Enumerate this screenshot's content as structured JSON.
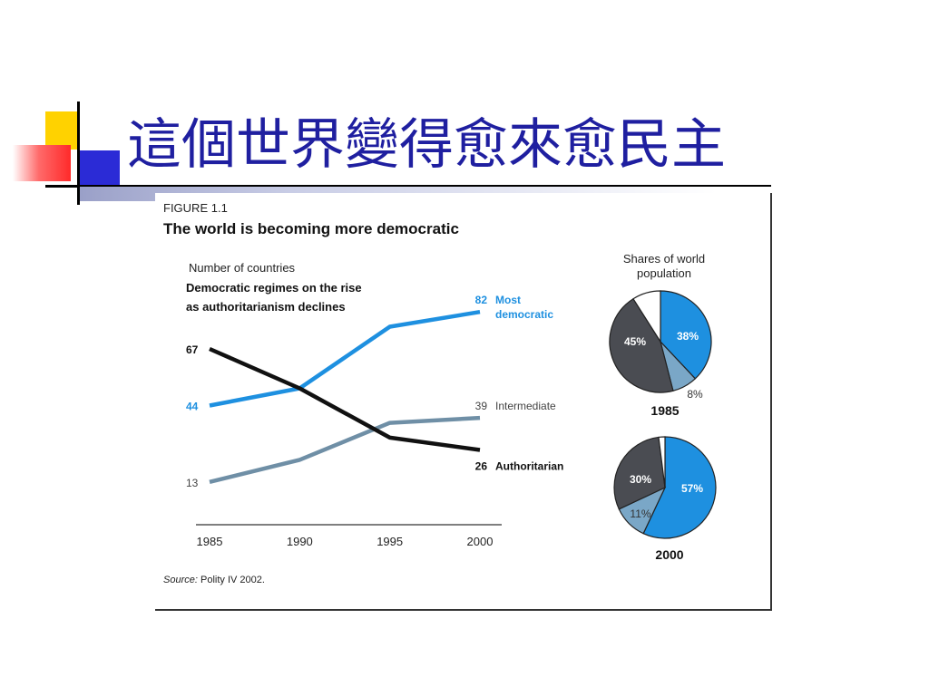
{
  "slide": {
    "title": "這個世界變得愈來愈民主"
  },
  "figure": {
    "label": "FIGURE 1.1",
    "heading": "The world is becoming more democratic",
    "source_label": "Source:",
    "source_text": "Polity IV 2002."
  },
  "chart_data": [
    {
      "type": "line",
      "title": "The world is becoming more democratic",
      "ylabel": "Number of countries",
      "subtitle_lines": [
        "Democratic regimes on the rise",
        "as authoritarianism declines"
      ],
      "x": [
        1985,
        1990,
        1995,
        2000
      ],
      "xtick_labels": [
        "1985",
        "1990",
        "1995",
        "2000"
      ],
      "ylim": [
        10,
        85
      ],
      "grid": false,
      "series": [
        {
          "name_lines": [
            "Most",
            "democratic"
          ],
          "values": [
            44,
            51,
            76,
            82
          ],
          "color": "#1e90e0",
          "start_label": "44",
          "end_label": "82"
        },
        {
          "name_lines": [
            "Intermediate"
          ],
          "values": [
            13,
            22,
            37,
            39
          ],
          "color": "#6f8fa6",
          "start_label": "13",
          "end_label": "39"
        },
        {
          "name_lines": [
            "Authoritarian"
          ],
          "values": [
            67,
            51,
            31,
            26
          ],
          "color": "#111111",
          "start_label": "67",
          "end_label": "26"
        }
      ]
    },
    {
      "type": "pie",
      "title_lines": [
        "Shares of world",
        "population"
      ],
      "pies": [
        {
          "year": "1985",
          "slices": [
            {
              "value": 38,
              "label": "38%",
              "color": "#1e90e0"
            },
            {
              "value": 8,
              "label": "8%",
              "color": "#7aa7c7"
            },
            {
              "value": 45,
              "label": "45%",
              "color": "#4a4c52"
            },
            {
              "value": 9,
              "label": "",
              "color": "#ffffff"
            }
          ]
        },
        {
          "year": "2000",
          "slices": [
            {
              "value": 57,
              "label": "57%",
              "color": "#1e90e0"
            },
            {
              "value": 11,
              "label": "11%",
              "color": "#7aa7c7"
            },
            {
              "value": 30,
              "label": "30%",
              "color": "#4a4c52"
            },
            {
              "value": 2,
              "label": "",
              "color": "#ffffff"
            }
          ]
        }
      ]
    }
  ]
}
